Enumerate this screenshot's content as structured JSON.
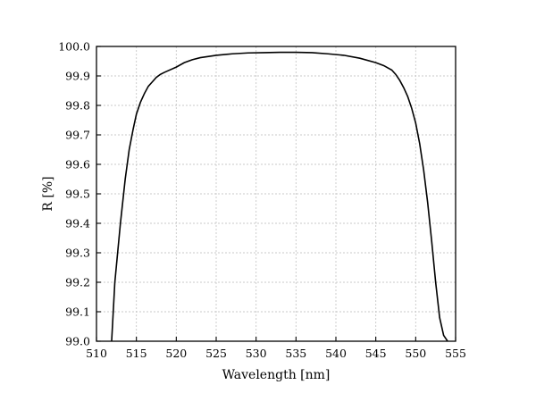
{
  "chart_data": {
    "type": "line",
    "xlabel": "Wavelength [nm]",
    "ylabel": "R [%]",
    "xlim": [
      510,
      555
    ],
    "ylim": [
      99.0,
      100.0
    ],
    "x_ticks": [
      "510",
      "515",
      "520",
      "525",
      "530",
      "535",
      "540",
      "545",
      "550",
      "555"
    ],
    "y_ticks": [
      "99.0",
      "99.1",
      "99.2",
      "99.3",
      "99.4",
      "99.5",
      "99.6",
      "99.7",
      "99.8",
      "99.9",
      "100.0"
    ],
    "grid": true,
    "series": [
      {
        "x": [
          511.9,
          512.3,
          513.0,
          513.6,
          514.1,
          514.6,
          515.0,
          515.5,
          516.0,
          516.5,
          517.0,
          517.5,
          518.0,
          518.5,
          519.0,
          520.0,
          521.0,
          522.0,
          523.0,
          525.0,
          527.0,
          529.0,
          531.0,
          533.0,
          535.0,
          537.0,
          539.0,
          541.0,
          543.0,
          545.0,
          546.0,
          547.0,
          547.5,
          548.0,
          548.5,
          549.0,
          549.5,
          550.0,
          550.5,
          551.0,
          551.5,
          552.0,
          552.5,
          553.0,
          553.5,
          554.0
        ],
        "y": [
          99.0,
          99.2,
          99.4,
          99.55,
          99.65,
          99.72,
          99.77,
          99.81,
          99.84,
          99.865,
          99.88,
          99.895,
          99.905,
          99.912,
          99.918,
          99.93,
          99.945,
          99.955,
          99.962,
          99.97,
          99.975,
          99.978,
          99.979,
          99.98,
          99.98,
          99.979,
          99.975,
          99.97,
          99.96,
          99.945,
          99.935,
          99.92,
          99.905,
          99.885,
          99.86,
          99.83,
          99.79,
          99.74,
          99.67,
          99.58,
          99.47,
          99.34,
          99.2,
          99.08,
          99.02,
          99.0
        ],
        "color": "#000000"
      }
    ]
  }
}
